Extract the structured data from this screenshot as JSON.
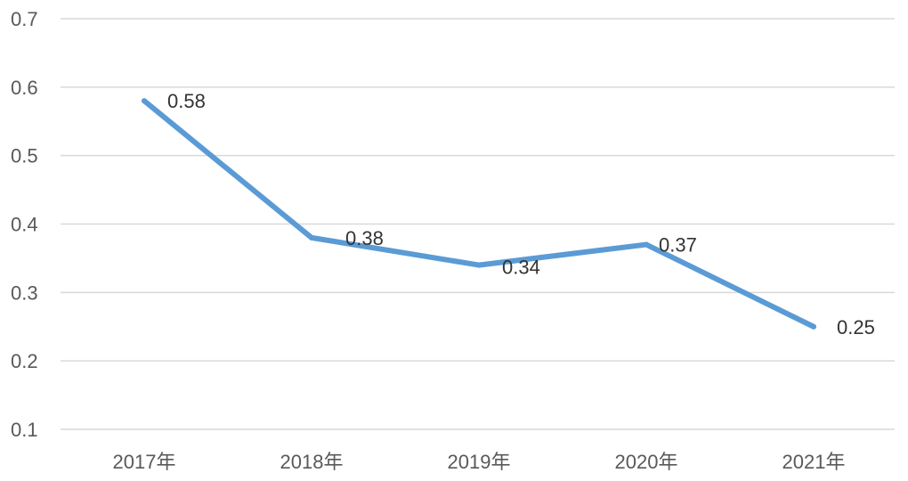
{
  "chart_data": {
    "type": "line",
    "categories": [
      "2017年",
      "2018年",
      "2019年",
      "2020年",
      "2021年"
    ],
    "series": [
      {
        "values": [
          0.58,
          0.38,
          0.34,
          0.37,
          0.25
        ]
      }
    ],
    "data_labels": [
      "0.58",
      "0.38",
      "0.34",
      "0.37",
      "0.25"
    ],
    "ylim": [
      0.1,
      0.7
    ],
    "yticks": [
      "0.1",
      "0.2",
      "0.3",
      "0.4",
      "0.5",
      "0.6",
      "0.7"
    ],
    "grid": true,
    "legend": "none",
    "line_color": "#5b9bd5"
  }
}
